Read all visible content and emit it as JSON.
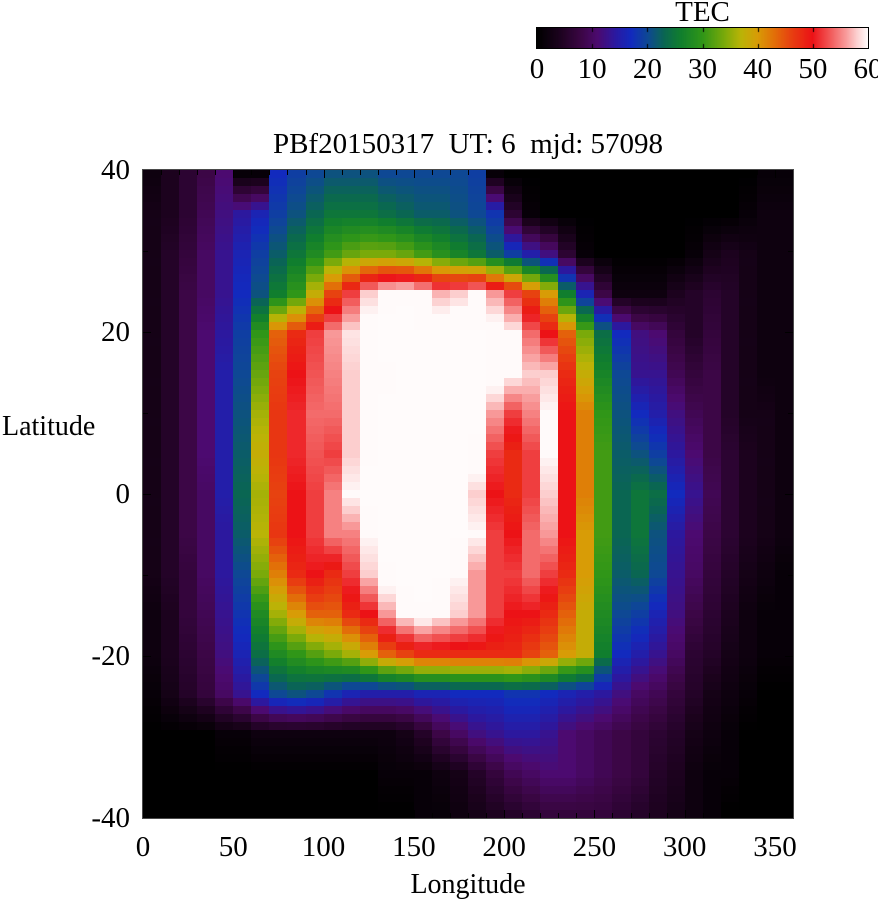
{
  "title": "PBf20150317  UT: 6  mjd: 57098",
  "colorbar": {
    "title": "TEC",
    "min": 0,
    "max": 60,
    "tick_labels": [
      "0",
      "10",
      "20",
      "30",
      "40",
      "50",
      "60"
    ],
    "tick_values": [
      0,
      10,
      20,
      30,
      40,
      50,
      60
    ]
  },
  "axes": {
    "x_label": "Longitude",
    "y_label": "Latitude",
    "x_tick_labels": [
      "0",
      "50",
      "100",
      "150",
      "200",
      "250",
      "300",
      "350"
    ],
    "x_tick_values": [
      0,
      50,
      100,
      150,
      200,
      250,
      300,
      350
    ],
    "y_tick_labels": [
      "40",
      "20",
      "0",
      "-20",
      "-40"
    ],
    "y_tick_values": [
      40,
      20,
      0,
      -20,
      -40
    ],
    "x_range": [
      0,
      360
    ],
    "y_range": [
      -40,
      40
    ]
  },
  "chart_data": {
    "type": "heatmap",
    "title": "PBf20150317  UT: 6  mjd: 57098",
    "xlabel": "Longitude",
    "ylabel": "Latitude",
    "colorbar_label": "TEC",
    "colorbar_range": [
      0,
      60
    ],
    "x_range_deg": [
      0,
      360
    ],
    "y_range_deg": [
      -40,
      40
    ],
    "lon_bin_width_deg": 10,
    "lat_sample_deg": [
      40,
      35,
      30,
      25,
      20,
      15,
      10,
      5,
      0,
      -5,
      -10,
      -15,
      -20,
      -25,
      -30,
      -35,
      -40
    ],
    "tec_grid_rows_north_to_south": [
      [
        2,
        4,
        6,
        8,
        11,
        1,
        1,
        17,
        19,
        20,
        21,
        21,
        21,
        20,
        20,
        20,
        20,
        20,
        19,
        1,
        0,
        0,
        0,
        0,
        0,
        0,
        0,
        0,
        0,
        0,
        0,
        0,
        0,
        0,
        1,
        1
      ],
      [
        3,
        4,
        6,
        9,
        12,
        14,
        16,
        19,
        21,
        23,
        25,
        25,
        25,
        24,
        23,
        22,
        22,
        21,
        20,
        18,
        6,
        1,
        0,
        0,
        0,
        0,
        0,
        0,
        0,
        0,
        0,
        0,
        0,
        1,
        2,
        2
      ],
      [
        3,
        5,
        7,
        10,
        13,
        16,
        19,
        22,
        25,
        28,
        31,
        33,
        34,
        34,
        33,
        31,
        29,
        27,
        25,
        22,
        19,
        15,
        12,
        6,
        1,
        0,
        0,
        0,
        0,
        0,
        1,
        3,
        4,
        3,
        2,
        2
      ],
      [
        3,
        5,
        8,
        10,
        13,
        17,
        21,
        26,
        30,
        38,
        46,
        52,
        58,
        61,
        62,
        60,
        57,
        58,
        60,
        56,
        52,
        46,
        40,
        26,
        16,
        8,
        2,
        2,
        2,
        4,
        5,
        6,
        5,
        3,
        2,
        2
      ],
      [
        3,
        5,
        8,
        11,
        14,
        19,
        30,
        44,
        48,
        52,
        56,
        59,
        62,
        64,
        64,
        63,
        63,
        63,
        63,
        62,
        60,
        54,
        50,
        44,
        34,
        24,
        17,
        12,
        11,
        7,
        5,
        7,
        5,
        3,
        2,
        2
      ],
      [
        3,
        5,
        8,
        11,
        15,
        20,
        33,
        46,
        50,
        53,
        55,
        58,
        60,
        62,
        64,
        64,
        64,
        64,
        64,
        62,
        60,
        58,
        58,
        48,
        38,
        27,
        20,
        13,
        13,
        9,
        7,
        8,
        5,
        3,
        2,
        2
      ],
      [
        3,
        5,
        8,
        11,
        15,
        21,
        36,
        47,
        51,
        54,
        54,
        58,
        62,
        63,
        64,
        64,
        64,
        64,
        63,
        56,
        52,
        55,
        60,
        50,
        42,
        30,
        21,
        17,
        15,
        12,
        9,
        8,
        5,
        3,
        3,
        2
      ],
      [
        3,
        5,
        8,
        11,
        15,
        22,
        38,
        47,
        51,
        53,
        52,
        58,
        62,
        64,
        64,
        64,
        64,
        64,
        62,
        52,
        48,
        52,
        60,
        50,
        42,
        31,
        22,
        21,
        19,
        14,
        11,
        8,
        6,
        4,
        3,
        2
      ],
      [
        3,
        5,
        8,
        10,
        15,
        23,
        36,
        46,
        50,
        52,
        55,
        60,
        64,
        64,
        64,
        64,
        64,
        64,
        58,
        50,
        48,
        52,
        58,
        50,
        42,
        31,
        23,
        25,
        24,
        17,
        13,
        9,
        6,
        4,
        3,
        2
      ],
      [
        3,
        5,
        8,
        10,
        14,
        22,
        37,
        47,
        50,
        52,
        55,
        55,
        60,
        64,
        64,
        64,
        64,
        63,
        60,
        52,
        50,
        54,
        56,
        50,
        40,
        31,
        23,
        25,
        21,
        14,
        11,
        8,
        6,
        4,
        3,
        2
      ],
      [
        3,
        5,
        7,
        10,
        14,
        20,
        34,
        42,
        48,
        50,
        48,
        52,
        58,
        62,
        64,
        64,
        63,
        60,
        56,
        52,
        52,
        54,
        52,
        48,
        40,
        30,
        22,
        23,
        20,
        13,
        10,
        7,
        5,
        3,
        2,
        1
      ],
      [
        2,
        4,
        7,
        9,
        13,
        18,
        28,
        36,
        40,
        44,
        44,
        48,
        50,
        56,
        60,
        62,
        60,
        58,
        56,
        52,
        50,
        50,
        48,
        44,
        38,
        28,
        20,
        19,
        16,
        12,
        8,
        6,
        4,
        2,
        1,
        1
      ],
      [
        2,
        4,
        6,
        8,
        12,
        16,
        24,
        28,
        30,
        32,
        34,
        36,
        40,
        44,
        46,
        48,
        48,
        48,
        48,
        48,
        48,
        46,
        44,
        40,
        38,
        26,
        17,
        15,
        13,
        10,
        6,
        5,
        3,
        2,
        1,
        1
      ],
      [
        1,
        3,
        5,
        7,
        10,
        13,
        17,
        20,
        21,
        20,
        18,
        16,
        15,
        15,
        15,
        16,
        16,
        17,
        17,
        17,
        18,
        18,
        17,
        16,
        15,
        14,
        12,
        10,
        9,
        7,
        5,
        3,
        2,
        1,
        0,
        0
      ],
      [
        0,
        0,
        0,
        0,
        1,
        1,
        2,
        2,
        2,
        2,
        2,
        2,
        2,
        2,
        3,
        5,
        8,
        10,
        12,
        13,
        14,
        14,
        13,
        11,
        10,
        9,
        8,
        7,
        6,
        5,
        3,
        2,
        1,
        0,
        0,
        0
      ],
      [
        0,
        0,
        0,
        0,
        0,
        0,
        0,
        0,
        0,
        0,
        0,
        0,
        0,
        1,
        1,
        1,
        2,
        3,
        5,
        7,
        9,
        10,
        11,
        11,
        10,
        9,
        8,
        7,
        5,
        4,
        2,
        1,
        1,
        0,
        0,
        0
      ],
      [
        0,
        0,
        0,
        0,
        0,
        0,
        0,
        0,
        0,
        0,
        0,
        0,
        0,
        0,
        0,
        1,
        1,
        2,
        3,
        4,
        5,
        6,
        7,
        7,
        7,
        7,
        6,
        5,
        4,
        3,
        2,
        1,
        0,
        0,
        0,
        0
      ]
    ],
    "colormap_stops": [
      [
        0,
        0,
        0,
        0
      ],
      [
        4,
        28,
        2,
        30
      ],
      [
        8,
        60,
        6,
        70
      ],
      [
        11,
        76,
        10,
        112
      ],
      [
        14,
        44,
        24,
        158
      ],
      [
        17,
        18,
        42,
        190
      ],
      [
        20,
        14,
        72,
        148
      ],
      [
        23,
        10,
        102,
        82
      ],
      [
        26,
        16,
        126,
        46
      ],
      [
        30,
        48,
        150,
        24
      ],
      [
        34,
        122,
        170,
        10
      ],
      [
        37,
        186,
        180,
        6
      ],
      [
        40,
        216,
        156,
        6
      ],
      [
        43,
        226,
        112,
        8
      ],
      [
        46,
        231,
        66,
        16
      ],
      [
        50,
        236,
        18,
        22
      ],
      [
        53,
        241,
        84,
        84
      ],
      [
        56,
        248,
        152,
        152
      ],
      [
        58,
        252,
        206,
        206
      ],
      [
        60,
        255,
        250,
        250
      ],
      [
        70,
        255,
        252,
        252
      ]
    ],
    "grid": "off",
    "legend": "colorbar top-right"
  }
}
